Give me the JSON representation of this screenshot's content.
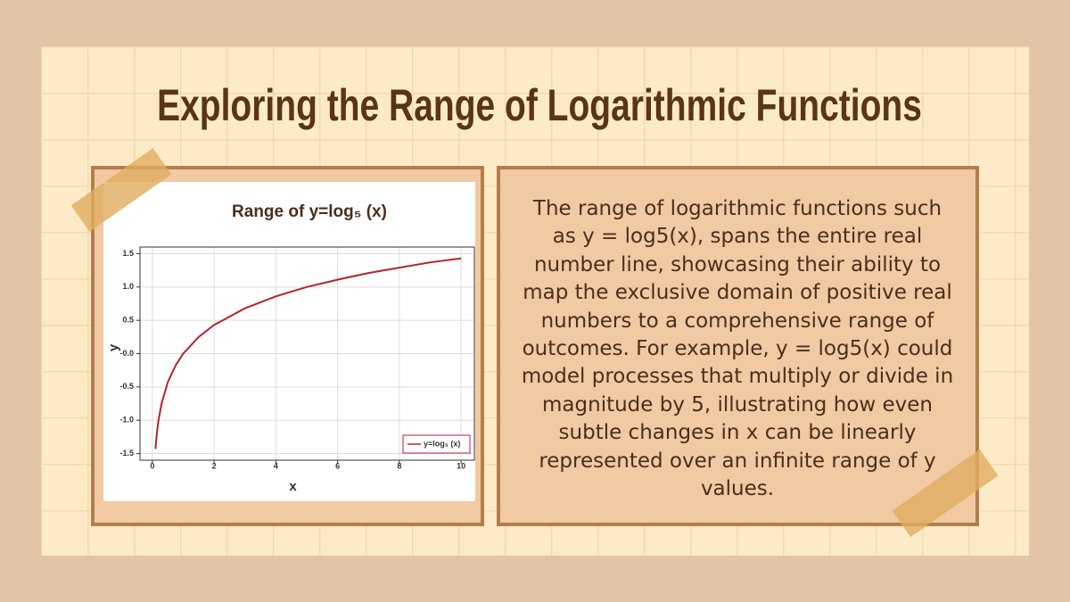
{
  "title": "Exploring the Range of Logarithmic Functions",
  "body": "The range of logarithmic functions such as y = log5(x), spans the entire real number line, showcasing their ability to map the exclusive domain of positive real numbers to a comprehensive range of outcomes. For example, y = log5(x) could model processes that multiply or divide in magnitude by 5, illustrating how even subtle changes in x can be linearly represented over an infinite range of y values.",
  "chart_data": {
    "type": "line",
    "title": "Range of y=log₅ (x)",
    "x_label": "x",
    "y_label": "y",
    "x": [
      0.1,
      0.15,
      0.2,
      0.3,
      0.5,
      0.75,
      1,
      1.5,
      2,
      3,
      4,
      5,
      6,
      7,
      8,
      9,
      10
    ],
    "series": [
      {
        "name": "y=log₅ (x)",
        "color": "#b5232f",
        "values": [
          -1.43,
          -1.18,
          -1,
          -0.75,
          -0.43,
          -0.18,
          0,
          0.25,
          0.43,
          0.68,
          0.86,
          1,
          1.11,
          1.21,
          1.29,
          1.37,
          1.43
        ]
      }
    ],
    "xlim": [
      -0.4,
      10.43
    ],
    "xticks": [
      0,
      2,
      4,
      6,
      8,
      10
    ],
    "ylim": [
      -1.6,
      1.6
    ],
    "yticks": [
      {
        "value": -1.5,
        "label": "-1.5"
      },
      {
        "value": -1,
        "label": "-1.0"
      },
      {
        "value": -0.5,
        "label": "-0.5"
      },
      {
        "value": 0,
        "label": "-0.0"
      },
      0.5,
      {
        "value": 1,
        "label": "1.0"
      },
      1.5
    ],
    "grid": true,
    "legend": "lower right"
  }
}
